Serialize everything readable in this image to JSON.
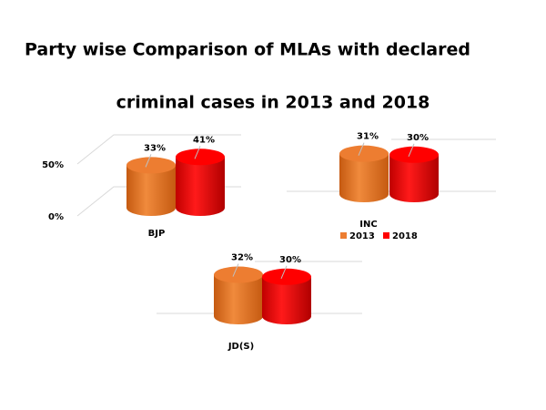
{
  "title": [
    "Party wise Comparison of MLAs with declared",
    "criminal cases in 2013 and 2018"
  ],
  "chart_data": [
    {
      "type": "bar",
      "categories": [
        "BJP"
      ],
      "series": [
        {
          "color": "#ed7d31",
          "values": [
            33
          ],
          "value_labels": [
            "33%"
          ]
        },
        {
          "color": "#ff0000",
          "values": [
            41
          ],
          "value_labels": [
            "41%"
          ]
        }
      ],
      "ylim": [
        0,
        50
      ],
      "yticks": [
        {
          "value": 0,
          "label": "0%"
        },
        {
          "value": 50,
          "label": "50%"
        }
      ],
      "grid": true
    },
    {
      "type": "bar",
      "categories": [
        "INC"
      ],
      "series": [
        {
          "name": "2013",
          "color": "#ed7d31",
          "values": [
            31
          ],
          "value_labels": [
            "31%"
          ]
        },
        {
          "name": "2018",
          "color": "#ff0000",
          "values": [
            30
          ],
          "value_labels": [
            "30%"
          ]
        }
      ],
      "ylim": [
        0,
        50
      ],
      "grid": true,
      "legend": "bottom"
    },
    {
      "type": "bar",
      "categories": [
        "JD(S)"
      ],
      "series": [
        {
          "color": "#ed7d31",
          "values": [
            32
          ],
          "value_labels": [
            "32%"
          ]
        },
        {
          "color": "#ff0000",
          "values": [
            30
          ],
          "value_labels": [
            "30%"
          ]
        }
      ],
      "ylim": [
        0,
        50
      ],
      "grid": true
    }
  ]
}
